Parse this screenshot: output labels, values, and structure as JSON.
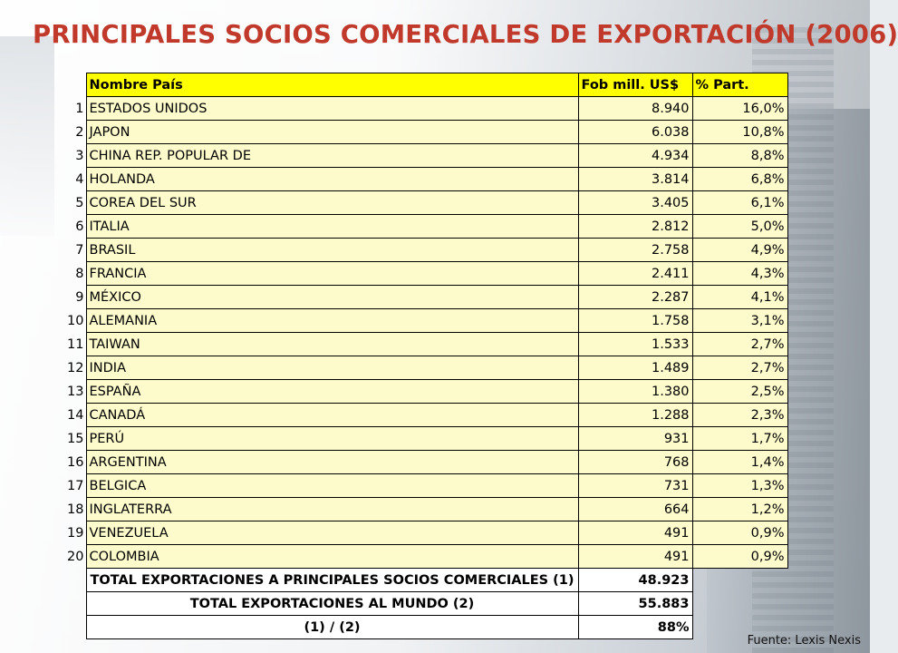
{
  "title": "PRINCIPALES SOCIOS COMERCIALES DE EXPORTACIÓN (2006)",
  "table": {
    "headers": {
      "name": "Nombre País",
      "fob": "Fob mill. US$",
      "pct": "% Part."
    },
    "rows": [
      {
        "idx": "1",
        "name": "ESTADOS UNIDOS",
        "fob": "8.940",
        "pct": "16,0%"
      },
      {
        "idx": "2",
        "name": "JAPON",
        "fob": "6.038",
        "pct": "10,8%"
      },
      {
        "idx": "3",
        "name": "CHINA REP. POPULAR DE",
        "fob": "4.934",
        "pct": "8,8%"
      },
      {
        "idx": "4",
        "name": "HOLANDA",
        "fob": "3.814",
        "pct": "6,8%"
      },
      {
        "idx": "5",
        "name": "COREA DEL SUR",
        "fob": "3.405",
        "pct": "6,1%"
      },
      {
        "idx": "6",
        "name": "ITALIA",
        "fob": "2.812",
        "pct": "5,0%"
      },
      {
        "idx": "7",
        "name": "BRASIL",
        "fob": "2.758",
        "pct": "4,9%"
      },
      {
        "idx": "8",
        "name": "FRANCIA",
        "fob": "2.411",
        "pct": "4,3%"
      },
      {
        "idx": "9",
        "name": "MÉXICO",
        "fob": "2.287",
        "pct": "4,1%"
      },
      {
        "idx": "10",
        "name": "ALEMANIA",
        "fob": "1.758",
        "pct": "3,1%"
      },
      {
        "idx": "11",
        "name": "TAIWAN",
        "fob": "1.533",
        "pct": "2,7%"
      },
      {
        "idx": "12",
        "name": "INDIA",
        "fob": "1.489",
        "pct": "2,7%"
      },
      {
        "idx": "13",
        "name": "ESPAÑA",
        "fob": "1.380",
        "pct": "2,5%"
      },
      {
        "idx": "14",
        "name": "CANADÁ",
        "fob": "1.288",
        "pct": "2,3%"
      },
      {
        "idx": "15",
        "name": "PERÚ",
        "fob": "931",
        "pct": "1,7%"
      },
      {
        "idx": "16",
        "name": "ARGENTINA",
        "fob": "768",
        "pct": "1,4%"
      },
      {
        "idx": "17",
        "name": "BELGICA",
        "fob": "731",
        "pct": "1,3%"
      },
      {
        "idx": "18",
        "name": "INGLATERRA",
        "fob": "664",
        "pct": "1,2%"
      },
      {
        "idx": "19",
        "name": "VENEZUELA",
        "fob": "491",
        "pct": "0,9%"
      },
      {
        "idx": "20",
        "name": "COLOMBIA",
        "fob": "491",
        "pct": "0,9%"
      }
    ],
    "summary": [
      {
        "label": "TOTAL EXPORTACIONES A PRINCIPALES SOCIOS COMERCIALES  (1)",
        "value": "48.923"
      },
      {
        "label": "TOTAL EXPORTACIONES AL MUNDO  (2)",
        "value": "55.883"
      },
      {
        "label": "(1)   /   (2)",
        "value": "88%"
      }
    ]
  },
  "source": "Fuente: Lexis Nexis"
}
